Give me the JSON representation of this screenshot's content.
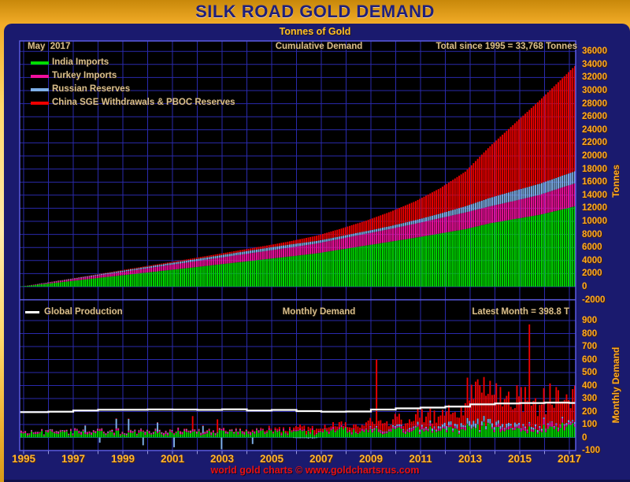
{
  "window": {
    "title": "SILK ROAD GOLD DEMAND",
    "subtitle": "Tonnes of Gold",
    "footer": "world gold charts © www.goldchartsrus.com"
  },
  "colors": {
    "panel": "#1a1a6e",
    "plot_bg": "#000000",
    "grid": "#2a2aac",
    "grid_bright": "#5a5ae0",
    "tick_mark": "#9a9ade",
    "india": "#00dd00",
    "turkey": "#f2109e",
    "russia": "#7fb0e8",
    "china": "#ee0000",
    "production": "#ffffff"
  },
  "chart_data": [
    {
      "type": "bar",
      "subtype": "stacked-cumulative-monthly",
      "title": "Cumulative Demand",
      "as_of_label": "May  2017",
      "total_label": "Total since 1995 = 33,768 Tonnes",
      "total_since_1995": 33768,
      "ylabel": "Tonnes",
      "ylim": [
        -2000,
        36000
      ],
      "y_ticks": [
        36000,
        34000,
        32000,
        30000,
        28000,
        26000,
        24000,
        22000,
        20000,
        18000,
        16000,
        14000,
        12000,
        10000,
        8000,
        6000,
        4000,
        2000,
        0,
        -2000
      ],
      "x_years": [
        1995,
        1996,
        1997,
        1998,
        1999,
        2000,
        2001,
        2002,
        2003,
        2004,
        2005,
        2006,
        2007,
        2008,
        2009,
        2010,
        2011,
        2012,
        2013,
        2014,
        2015,
        2016,
        2017,
        2017.42
      ],
      "series": [
        {
          "name": "India Imports",
          "color": "#00dd00",
          "cumulative": [
            0,
            400,
            820,
            1250,
            1680,
            2100,
            2520,
            2940,
            3370,
            3800,
            4230,
            4660,
            5100,
            5700,
            6300,
            6900,
            7500,
            8150,
            8800,
            9700,
            10350,
            11000,
            11900,
            12300
          ]
        },
        {
          "name": "Turkey Imports",
          "color": "#f2109e",
          "cumulative": [
            0,
            120,
            240,
            370,
            500,
            630,
            760,
            890,
            1010,
            1130,
            1250,
            1370,
            1500,
            1650,
            1800,
            1950,
            2150,
            2350,
            2550,
            2600,
            2800,
            3050,
            3400,
            3500
          ]
        },
        {
          "name": "Russian Reserves",
          "color": "#7fb0e8",
          "cumulative": [
            0,
            40,
            80,
            120,
            170,
            220,
            270,
            310,
            360,
            410,
            450,
            470,
            400,
            400,
            400,
            450,
            550,
            700,
            950,
            1300,
            1550,
            1700,
            1800,
            1850
          ]
        },
        {
          "name": "China SGE Withdrawals & PBOC Reserves",
          "color": "#ee0000",
          "cumulative": [
            0,
            20,
            40,
            60,
            90,
            120,
            150,
            190,
            240,
            300,
            370,
            500,
            800,
            1150,
            1600,
            2200,
            2900,
            3900,
            5300,
            7900,
            10300,
            12750,
            15100,
            16118
          ]
        }
      ]
    },
    {
      "type": "bar",
      "subtype": "stacked-monthly-with-line",
      "title": "Monthly Demand",
      "latest_label": "Latest Month = 398.8 T",
      "latest_month_tonnes": 398.8,
      "ylabel": "Monthly Demand",
      "ylim": [
        -100,
        900
      ],
      "y_ticks": [
        900,
        800,
        700,
        600,
        500,
        400,
        300,
        200,
        100,
        0,
        -100
      ],
      "production_line": {
        "name": "Global Production",
        "color": "#ffffff",
        "years": [
          1995,
          1996,
          1997,
          1998,
          1999,
          2000,
          2001,
          2002,
          2003,
          2004,
          2005,
          2006,
          2007,
          2008,
          2009,
          2010,
          2011,
          2012,
          2013,
          2014,
          2015,
          2016,
          2017
        ],
        "values": [
          195,
          198,
          208,
          214,
          214,
          216,
          215,
          213,
          217,
          207,
          212,
          203,
          199,
          200,
          215,
          224,
          230,
          238,
          255,
          262,
          265,
          268,
          266
        ]
      },
      "russia_monthly_events": [
        {
          "x": 1997.6,
          "value": 55
        },
        {
          "x": 1998.2,
          "value": -40
        },
        {
          "x": 1998.8,
          "value": 75
        },
        {
          "x": 1999.3,
          "value": 90
        },
        {
          "x": 1999.9,
          "value": -60
        },
        {
          "x": 2000.5,
          "value": 70
        },
        {
          "x": 2001.2,
          "value": -75
        },
        {
          "x": 2002.3,
          "value": 55
        },
        {
          "x": 2003.1,
          "value": -90
        },
        {
          "x": 2004.3,
          "value": -50
        }
      ],
      "china_monthly_spikes": [
        {
          "x": 2001.95,
          "value": 165
        },
        {
          "x": 2002.9,
          "value": 140
        },
        {
          "x": 2009.3,
          "value": 600
        },
        {
          "x": 2013.3,
          "value": 430
        },
        {
          "x": 2015.5,
          "value": 870
        },
        {
          "x": 2016.1,
          "value": 380
        }
      ]
    }
  ],
  "x_axis": {
    "tick_years": [
      1995,
      1997,
      1999,
      2001,
      2003,
      2005,
      2007,
      2009,
      2011,
      2013,
      2015,
      2017
    ]
  }
}
